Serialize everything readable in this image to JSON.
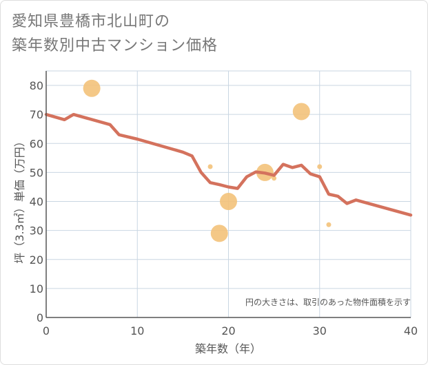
{
  "title_line1": "愛知県豊橋市北山町の",
  "title_line2": "築年数別中古マンション価格",
  "chart_data": {
    "type": "scatter",
    "xlabel": "築年数（年）",
    "ylabel": "坪（3.3㎡）単価（万円）",
    "xlim": [
      0,
      40
    ],
    "ylim": [
      0,
      85
    ],
    "xticks": [
      0,
      10,
      20,
      30,
      40
    ],
    "yticks": [
      0,
      10,
      20,
      30,
      40,
      50,
      60,
      70,
      80
    ],
    "grid": true,
    "annotation": "円の大きさは、取引のあった物件面積を示す",
    "colors": {
      "bubble": "#f3c27a",
      "line": "#d4725d",
      "grid": "#c9d6e2",
      "axis": "#555555",
      "text": "#555555"
    },
    "points": [
      {
        "x": 5,
        "y": 79,
        "size": 3
      },
      {
        "x": 18,
        "y": 52,
        "size": 1
      },
      {
        "x": 19,
        "y": 29,
        "size": 3
      },
      {
        "x": 20,
        "y": 40,
        "size": 3
      },
      {
        "x": 24,
        "y": 50,
        "size": 3
      },
      {
        "x": 25,
        "y": 48,
        "size": 1
      },
      {
        "x": 28,
        "y": 71,
        "size": 3
      },
      {
        "x": 30,
        "y": 52,
        "size": 1
      },
      {
        "x": 31,
        "y": 32,
        "size": 1
      }
    ],
    "series": [
      {
        "values": [
          [
            0,
            70
          ],
          [
            2,
            68.2
          ],
          [
            3,
            70
          ],
          [
            7,
            66.5
          ],
          [
            8,
            63
          ],
          [
            10,
            61.5
          ],
          [
            15,
            57
          ],
          [
            16,
            55.7
          ],
          [
            17,
            50
          ],
          [
            18,
            46.5
          ],
          [
            19,
            45.8
          ],
          [
            20,
            45
          ],
          [
            21,
            44.5
          ],
          [
            22,
            48.5
          ],
          [
            23,
            50.2
          ],
          [
            24,
            49.8
          ],
          [
            25,
            49
          ],
          [
            26,
            52.8
          ],
          [
            27,
            51.7
          ],
          [
            28,
            52.5
          ],
          [
            29,
            49.5
          ],
          [
            30,
            48.5
          ],
          [
            31,
            42.5
          ],
          [
            32,
            41.8
          ],
          [
            33,
            39.3
          ],
          [
            34,
            40.5
          ],
          [
            40,
            35.3
          ]
        ]
      }
    ]
  }
}
